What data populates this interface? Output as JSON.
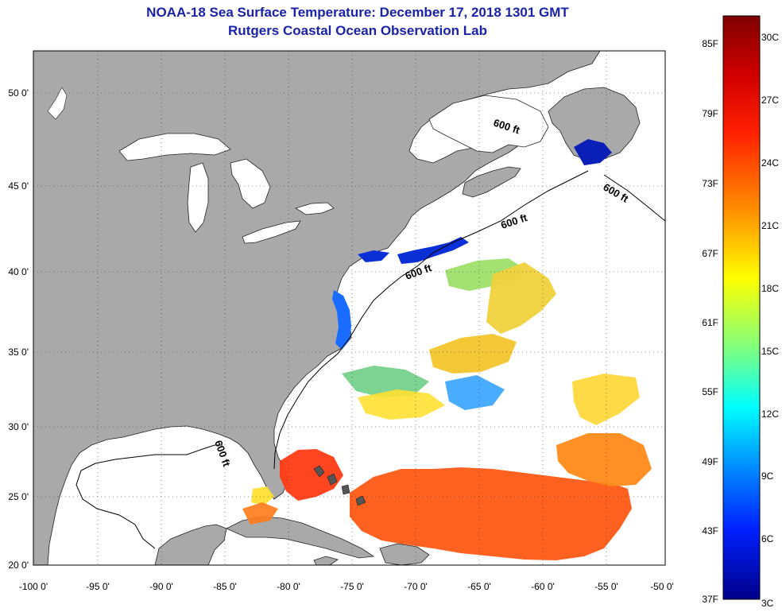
{
  "header": {
    "title": "NOAA-18 Sea Surface Temperature:  December 17, 2018 1301 GMT",
    "subtitle": "Rutgers Coastal Ocean Observation Lab"
  },
  "map": {
    "region": "Northwest Atlantic / US East Coast",
    "lon_range": [
      -100,
      -50
    ],
    "lat_range": [
      20,
      52
    ],
    "x_ticks": [
      "-100 0'",
      "-95 0'",
      "-90 0'",
      "-85 0'",
      "-80 0'",
      "-75 0'",
      "-70 0'",
      "-65 0'",
      "-60 0'",
      "-55 0'",
      "-50 0'"
    ],
    "y_ticks": [
      "20 0'",
      "25 0'",
      "30 0'",
      "35 0'",
      "40 0'",
      "45 0'",
      "50 0'"
    ],
    "grid": "dotted",
    "land_color": "#a9a9a9",
    "contour_label": "600 ft",
    "contour_labels": [
      {
        "text": "600 ft"
      },
      {
        "text": "600 ft"
      },
      {
        "text": "600 ft"
      },
      {
        "text": "600 ft"
      },
      {
        "text": "600 ft"
      }
    ]
  },
  "colorbar": {
    "fahrenheit_labels": [
      "85F",
      "79F",
      "73F",
      "67F",
      "61F",
      "55F",
      "49F",
      "43F",
      "37F"
    ],
    "celsius_labels": [
      "30C",
      "27C",
      "24C",
      "21C",
      "18C",
      "15C",
      "12C",
      "9C",
      "6C",
      "3C"
    ],
    "colors_top_to_bottom": [
      "#7f0000",
      "#ff0000",
      "#ff8000",
      "#ffff00",
      "#80ff80",
      "#00ffff",
      "#0080ff",
      "#0000ff",
      "#00008f"
    ]
  }
}
